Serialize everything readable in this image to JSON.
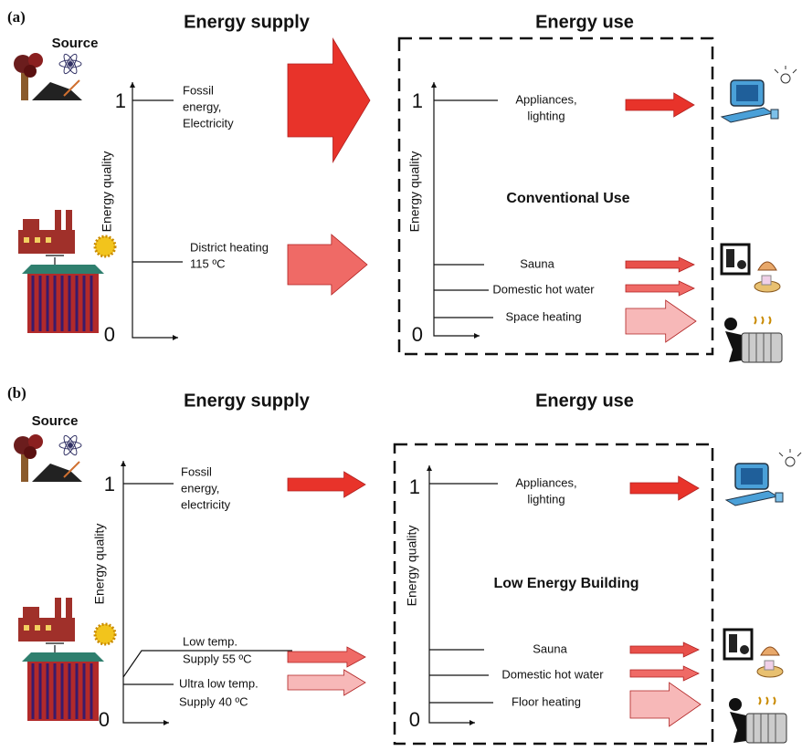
{
  "panels": [
    {
      "label": "(a)",
      "source_label": "Source",
      "supply_title": "Energy supply",
      "use_title": "Energy use",
      "supply_axis": {
        "label": "Energy quality",
        "top": "1",
        "bottom": "0"
      },
      "supply_items": [
        [
          "Fossil",
          "energy,",
          "Electricity"
        ],
        [
          "District heating",
          "115 ºC"
        ]
      ],
      "use_axis": {
        "label": "Energy quality",
        "top": "1",
        "bottom": "0"
      },
      "use_center": "Conventional  Use",
      "use_items": [
        [
          "Appliances,",
          "lighting"
        ],
        [
          "Sauna"
        ],
        [
          "Domestic hot water"
        ],
        [
          "Space heating"
        ]
      ]
    },
    {
      "label": "(b)",
      "source_label": "Source",
      "supply_title": "Energy supply",
      "use_title": "Energy use",
      "supply_axis": {
        "label": "Energy quality",
        "top": "1",
        "bottom": "0"
      },
      "supply_items": [
        [
          "Fossil",
          "energy,",
          "electricity"
        ],
        [
          "Low temp.",
          "Supply 55 ºC"
        ],
        [
          "Ultra low temp.",
          "Supply 40 ºC"
        ]
      ],
      "use_axis": {
        "label": "Energy quality",
        "top": "1",
        "bottom": "0"
      },
      "use_center": "Low Energy Building",
      "use_items": [
        [
          "Appliances,",
          "lighting"
        ],
        [
          "Sauna"
        ],
        [
          "Domestic hot water"
        ],
        [
          "Floor heating"
        ]
      ]
    }
  ]
}
